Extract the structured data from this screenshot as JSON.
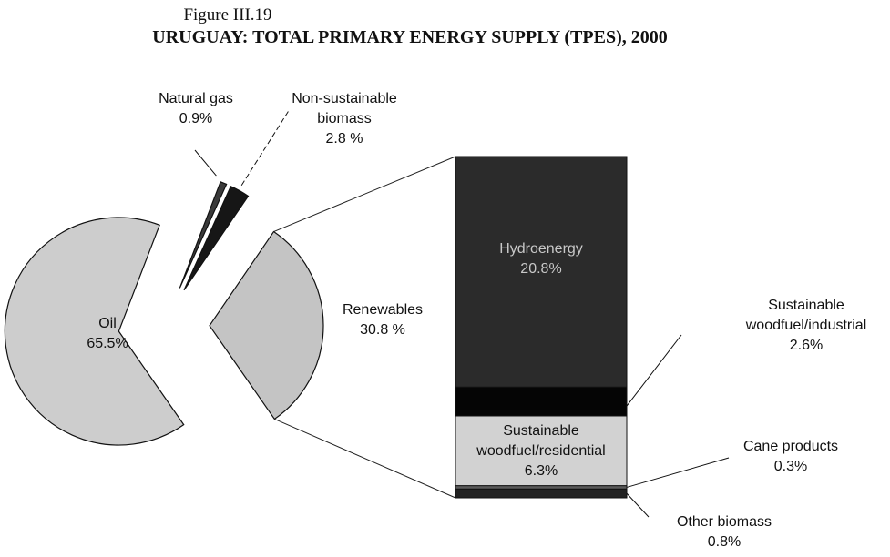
{
  "chart_data": {
    "type": "pie",
    "title": "Figure III.19",
    "subtitle": "URUGUAY: TOTAL PRIMARY ENERGY SUPPLY (TPES), 2000",
    "categories": [
      "Natural gas",
      "Non-sustainable biomass",
      "Renewables",
      "Oil"
    ],
    "values": [
      0.9,
      2.8,
      30.8,
      65.5
    ],
    "value_labels": [
      "0.9%",
      "2.8 %",
      "30.8 %",
      "65.5%"
    ],
    "colors": [
      "#3a3a3a",
      "#161616",
      "#c4c4c4",
      "#cdcdcd"
    ],
    "breakdown": {
      "type": "bar",
      "categories": [
        "Hydroenergy",
        "Sustainable woodfuel/industrial",
        "Sustainable woodfuel/residential",
        "Cane products",
        "Other biomass"
      ],
      "values": [
        20.8,
        2.6,
        6.3,
        0.3,
        0.8
      ],
      "value_labels": [
        "20.8%",
        "2.6%",
        "6.3%",
        "0.3%",
        "0.8%"
      ],
      "colors": [
        "#2b2b2b",
        "#050505",
        "#d2d2d2",
        "#5a5a5a",
        "#222222"
      ]
    }
  }
}
